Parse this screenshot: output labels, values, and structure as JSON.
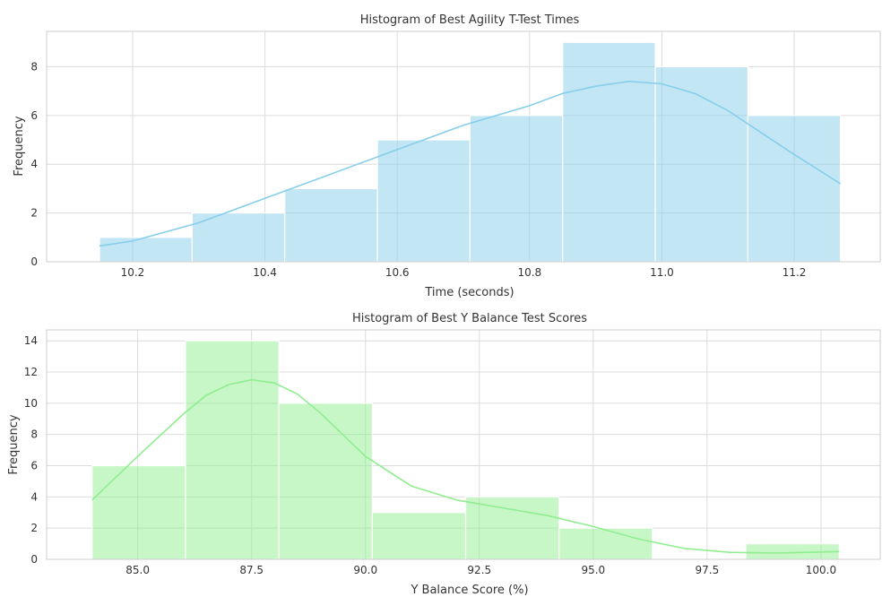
{
  "chart_data": [
    {
      "type": "bar",
      "title": "Histogram of Best Agility T-Test Times",
      "xlabel": "Time (seconds)",
      "ylabel": "Frequency",
      "xlim": [
        10.07,
        11.33
      ],
      "ylim": [
        0,
        9.45
      ],
      "xticks": [
        "10.2",
        "10.4",
        "10.6",
        "10.8",
        "11.0",
        "11.2"
      ],
      "xtick_values": [
        10.2,
        10.4,
        10.6,
        10.8,
        11.0,
        11.2
      ],
      "yticks": [
        "0",
        "2",
        "4",
        "6",
        "8"
      ],
      "ytick_values": [
        0,
        2,
        4,
        6,
        8
      ],
      "bin_edges": [
        10.15,
        10.29,
        10.43,
        10.57,
        10.71,
        10.85,
        10.99,
        11.13,
        11.27
      ],
      "counts": [
        1,
        2,
        3,
        5,
        6,
        9,
        8,
        6
      ],
      "bar_color": "#87ceeb",
      "bar_opacity": 0.5,
      "kde": {
        "color": "#87ceeb",
        "x": [
          10.15,
          10.2,
          10.3,
          10.4,
          10.5,
          10.6,
          10.7,
          10.8,
          10.85,
          10.9,
          10.95,
          11.0,
          11.05,
          11.1,
          11.15,
          11.2,
          11.27
        ],
        "y": [
          0.65,
          0.85,
          1.6,
          2.6,
          3.6,
          4.6,
          5.6,
          6.4,
          6.9,
          7.2,
          7.4,
          7.3,
          6.9,
          6.2,
          5.3,
          4.4,
          3.2
        ]
      },
      "grid": true
    },
    {
      "type": "bar",
      "title": "Histogram of Best Y Balance Test Scores",
      "xlabel": "Y Balance Score (%)",
      "ylabel": "Frequency",
      "xlim": [
        83.0,
        101.3
      ],
      "ylim": [
        0,
        14.7
      ],
      "xticks": [
        "85.0",
        "87.5",
        "90.0",
        "92.5",
        "95.0",
        "97.5",
        "100.0"
      ],
      "xtick_values": [
        85.0,
        87.5,
        90.0,
        92.5,
        95.0,
        97.5,
        100.0
      ],
      "yticks": [
        "0",
        "2",
        "4",
        "6",
        "8",
        "10",
        "12",
        "14"
      ],
      "ytick_values": [
        0,
        2,
        4,
        6,
        8,
        10,
        12,
        14
      ],
      "bin_edges": [
        84.0,
        86.05,
        88.1,
        90.15,
        92.2,
        94.25,
        96.3,
        98.35,
        100.4
      ],
      "counts": [
        6,
        14,
        10,
        3,
        4,
        2,
        0,
        1
      ],
      "bar_color": "#90ee90",
      "bar_opacity": 0.5,
      "kde": {
        "color": "#90ee90",
        "x": [
          84.0,
          85.0,
          86.0,
          86.5,
          87.0,
          87.5,
          88.0,
          88.5,
          89.0,
          89.5,
          90.0,
          91.0,
          92.0,
          93.0,
          94.0,
          95.0,
          96.0,
          97.0,
          98.0,
          99.0,
          100.4
        ],
        "y": [
          3.8,
          6.6,
          9.3,
          10.5,
          11.2,
          11.5,
          11.3,
          10.6,
          9.4,
          8.0,
          6.6,
          4.7,
          3.8,
          3.3,
          2.8,
          2.1,
          1.3,
          0.7,
          0.45,
          0.4,
          0.5
        ]
      },
      "grid": true
    }
  ]
}
